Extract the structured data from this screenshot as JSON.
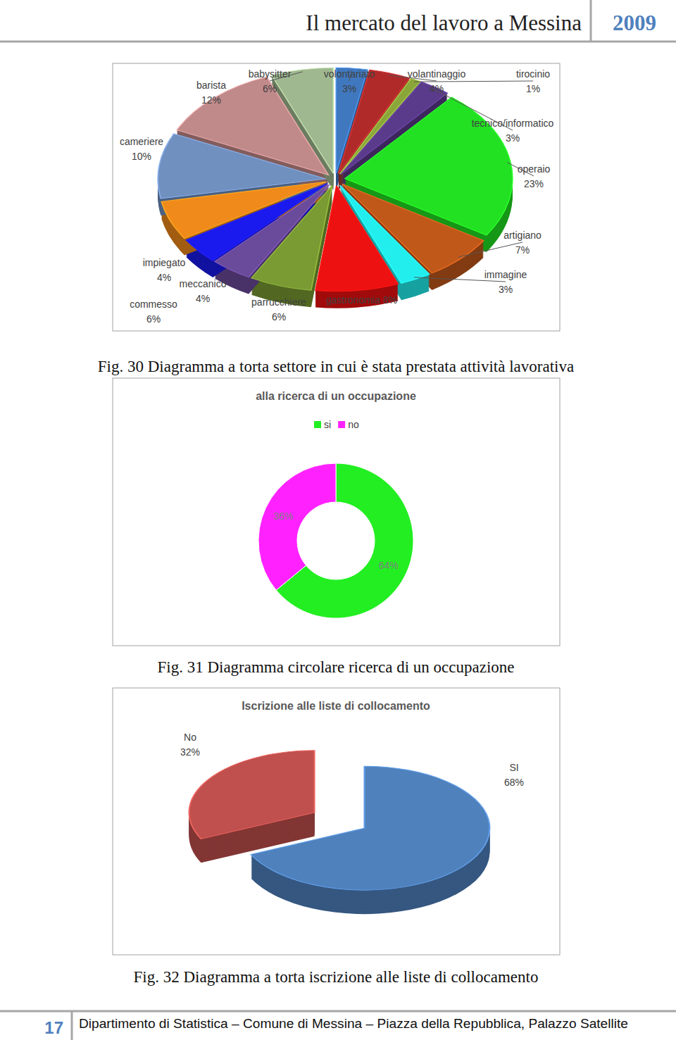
{
  "header": {
    "title": "Il mercato del lavoro a Messina",
    "year": "2009"
  },
  "chart_data": [
    {
      "type": "pie",
      "categories": [
        "volontariato",
        "volantinaggio",
        "tirocinio",
        "tecnico/informatico",
        "operaio",
        "artigiano",
        "immagine",
        "gastronomia",
        "parrucchiere",
        "meccanico",
        "impiegato",
        "commesso",
        "cameriere",
        "barista",
        "babysitter"
      ],
      "values": [
        3,
        4,
        1,
        3,
        23,
        7,
        3,
        8,
        6,
        4,
        4,
        6,
        10,
        12,
        6
      ],
      "value_labels": [
        "3%",
        "4%",
        "1%",
        "3%",
        "23%",
        "7%",
        "3%",
        "8%",
        "6%",
        "4%",
        "4%",
        "6%",
        "10%",
        "12%",
        "6%"
      ],
      "colors": [
        "#3f78bf",
        "#b02a2a",
        "#8aa63a",
        "#5a3a8a",
        "#22e022",
        "#c0581a",
        "#22eeee",
        "#ee1111",
        "#7a9a33",
        "#6a4a9a",
        "#1a1aee",
        "#f08a1a",
        "#7090c0",
        "#c08a8a",
        "#a0b890"
      ],
      "data_labels": true
    },
    {
      "type": "donut",
      "title": "alla ricerca di un occupazione",
      "categories": [
        "si",
        "no"
      ],
      "values": [
        64,
        36
      ],
      "value_labels": [
        "64%",
        "36%"
      ],
      "colors": [
        "#22ee22",
        "#ff22ff"
      ],
      "data_labels": true,
      "legend": "top"
    },
    {
      "type": "pie",
      "title": "Iscrizione alle liste di collocamento",
      "categories": [
        "SI",
        "No"
      ],
      "values": [
        68,
        32
      ],
      "value_labels": [
        "68%",
        "32%"
      ],
      "colors": [
        "#4f81bd",
        "#c0504d"
      ],
      "data_labels": true
    }
  ],
  "captions": [
    "Fig. 30 Diagramma a torta settore in cui è stata prestata attività lavorativa",
    "Fig. 31 Diagramma circolare ricerca di un occupazione",
    "Fig. 32 Diagramma a torta iscrizione alle liste di collocamento"
  ],
  "footer": {
    "page": 17,
    "text": "Dipartimento di Statistica – Comune di Messina – Piazza della Repubblica, Palazzo Satellite"
  }
}
